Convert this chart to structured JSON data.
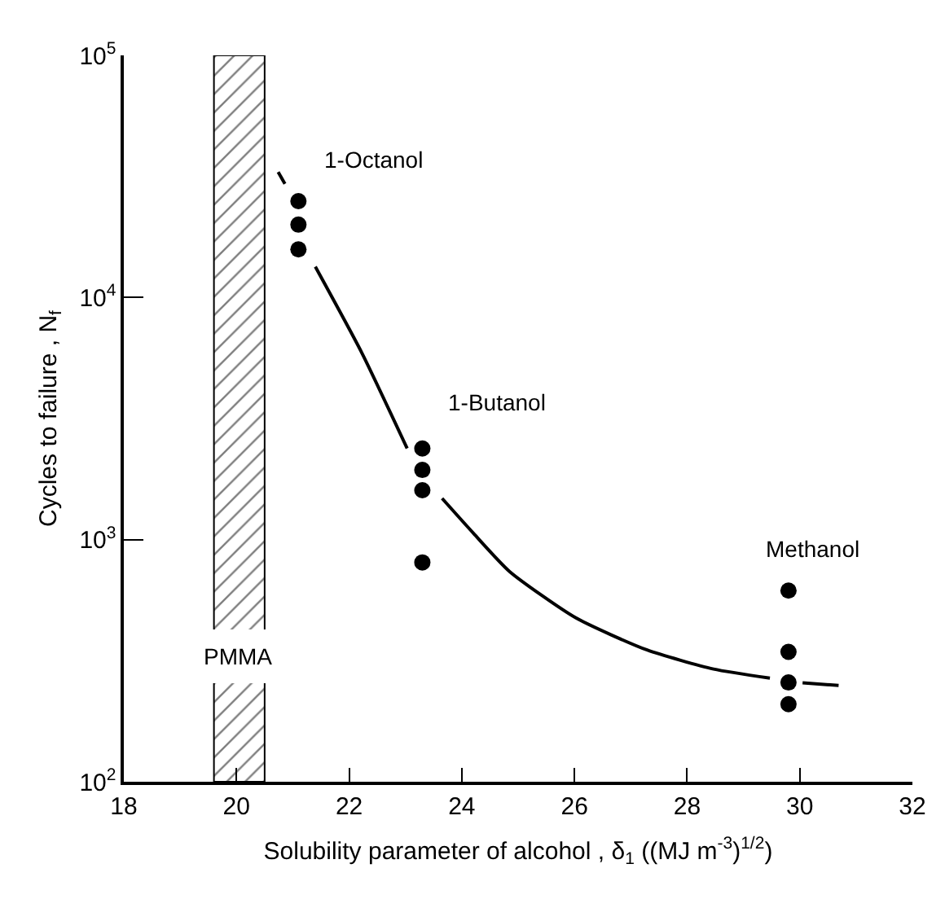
{
  "chart_data": {
    "type": "scatter",
    "xlabel": "Solubility parameter of alcohol , δ$_{1}$ ((MJ m$^{-3}$)$^{1/2}$)",
    "ylabel": "Cycles to failure , N$_{f}$",
    "series": [
      {
        "color": "#000000",
        "marker": "circle",
        "x": [
          21.1,
          21.1,
          21.1,
          23.3,
          23.3,
          23.3,
          23.3,
          29.8,
          29.8,
          29.8,
          29.8
        ],
        "values": [
          25000,
          20000,
          15800,
          2380,
          1940,
          1600,
          805,
          616,
          344,
          257,
          209
        ]
      },
      {
        "type": "line",
        "color": "#000000",
        "marker": "none",
        "line_style": "solid",
        "x": [
          20.74,
          20.86,
          21.1,
          21.4,
          22.22,
          23.03,
          23.3,
          23.65,
          24.21,
          24.85,
          26.02,
          27.29,
          28.47,
          29.47,
          29.8,
          30.05,
          30.69
        ],
        "values": [
          33000,
          29500,
          null,
          13400,
          5940,
          2380,
          null,
          1480,
          1060,
          738,
          476,
          350,
          292,
          268,
          null,
          256,
          250
        ]
      }
    ],
    "bands": [
      {
        "axis": "x",
        "from": 19.6,
        "to": 20.5,
        "label": "PMMA",
        "color": "#000000"
      }
    ],
    "annotations": [
      {
        "text": "1-Octanol",
        "x": 21.1,
        "y": 25000
      },
      {
        "text": "1-Butanol",
        "x": 23.3,
        "y": 2380
      },
      {
        "text": "Methanol",
        "x": 29.8,
        "y": 616
      }
    ],
    "xlim": [
      18,
      32
    ],
    "xticks": [
      18,
      20,
      22,
      24,
      26,
      28,
      30,
      32
    ],
    "ylim": [
      100,
      100000
    ],
    "yticks": [
      {
        "value": 100,
        "label": "10$^{2}$"
      },
      {
        "value": 1000,
        "label": "10$^{3}$"
      },
      {
        "value": 10000,
        "label": "10$^{4}$"
      },
      {
        "value": 100000,
        "label": "10$^{5}$"
      }
    ],
    "log": "y"
  }
}
